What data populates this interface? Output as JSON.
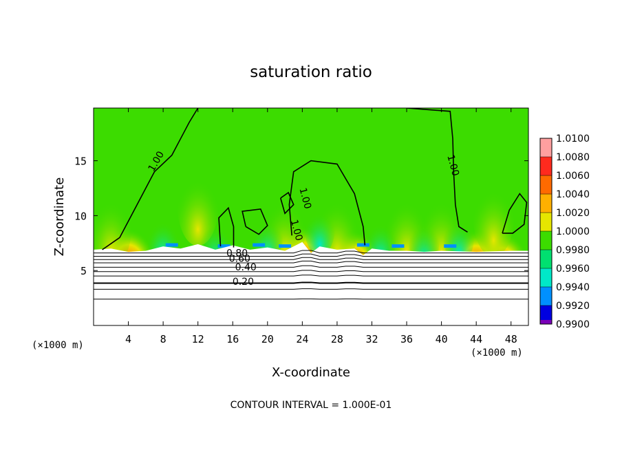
{
  "chart_data": {
    "type": "heatmap",
    "title": "saturation ratio",
    "xlabel": "X-coordinate",
    "ylabel": "Z-coordinate",
    "x_unit": "(×1000 m)",
    "y_unit": "(×1000 m)",
    "footer": "CONTOUR INTERVAL = 1.000E-01",
    "xlim": [
      0,
      50
    ],
    "ylim": [
      0,
      19.8
    ],
    "x_ticks": [
      4,
      8,
      12,
      16,
      20,
      24,
      28,
      32,
      36,
      40,
      44,
      48
    ],
    "y_ticks": [
      5,
      10,
      15
    ],
    "colorbar": {
      "levels": [
        "1.0100",
        "1.0080",
        "1.0060",
        "1.0040",
        "1.0020",
        "1.0000",
        "0.9980",
        "0.9960",
        "0.9940",
        "0.9920",
        "0.9900"
      ],
      "colors": [
        "#ff9f9f",
        "#ff2a1e",
        "#ff6a00",
        "#ffb000",
        "#e6e600",
        "#3cdc00",
        "#00e070",
        "#00e8c8",
        "#0090ff",
        "#0000e0",
        "#7a00b8"
      ]
    },
    "contour_labels": [
      {
        "text": "1.00",
        "x": 7.5,
        "y": 14.8
      },
      {
        "text": "1.00",
        "x": 41.0,
        "y": 14.5
      },
      {
        "text": "1.00",
        "x": 24.0,
        "y": 11.5
      },
      {
        "text": "1.00",
        "x": 23.0,
        "y": 8.6
      },
      {
        "text": "0.80",
        "x": 16.5,
        "y": 6.3
      },
      {
        "text": "0.60",
        "x": 16.8,
        "y": 5.8
      },
      {
        "text": "0.40",
        "x": 17.5,
        "y": 5.0
      },
      {
        "text": "0.20",
        "x": 17.2,
        "y": 3.7
      }
    ],
    "x_max_extent": 50,
    "notes": []
  },
  "colors": {
    "background_field": "#3cdc00",
    "below_cloud": "#ffffff",
    "contour": "#000000"
  }
}
